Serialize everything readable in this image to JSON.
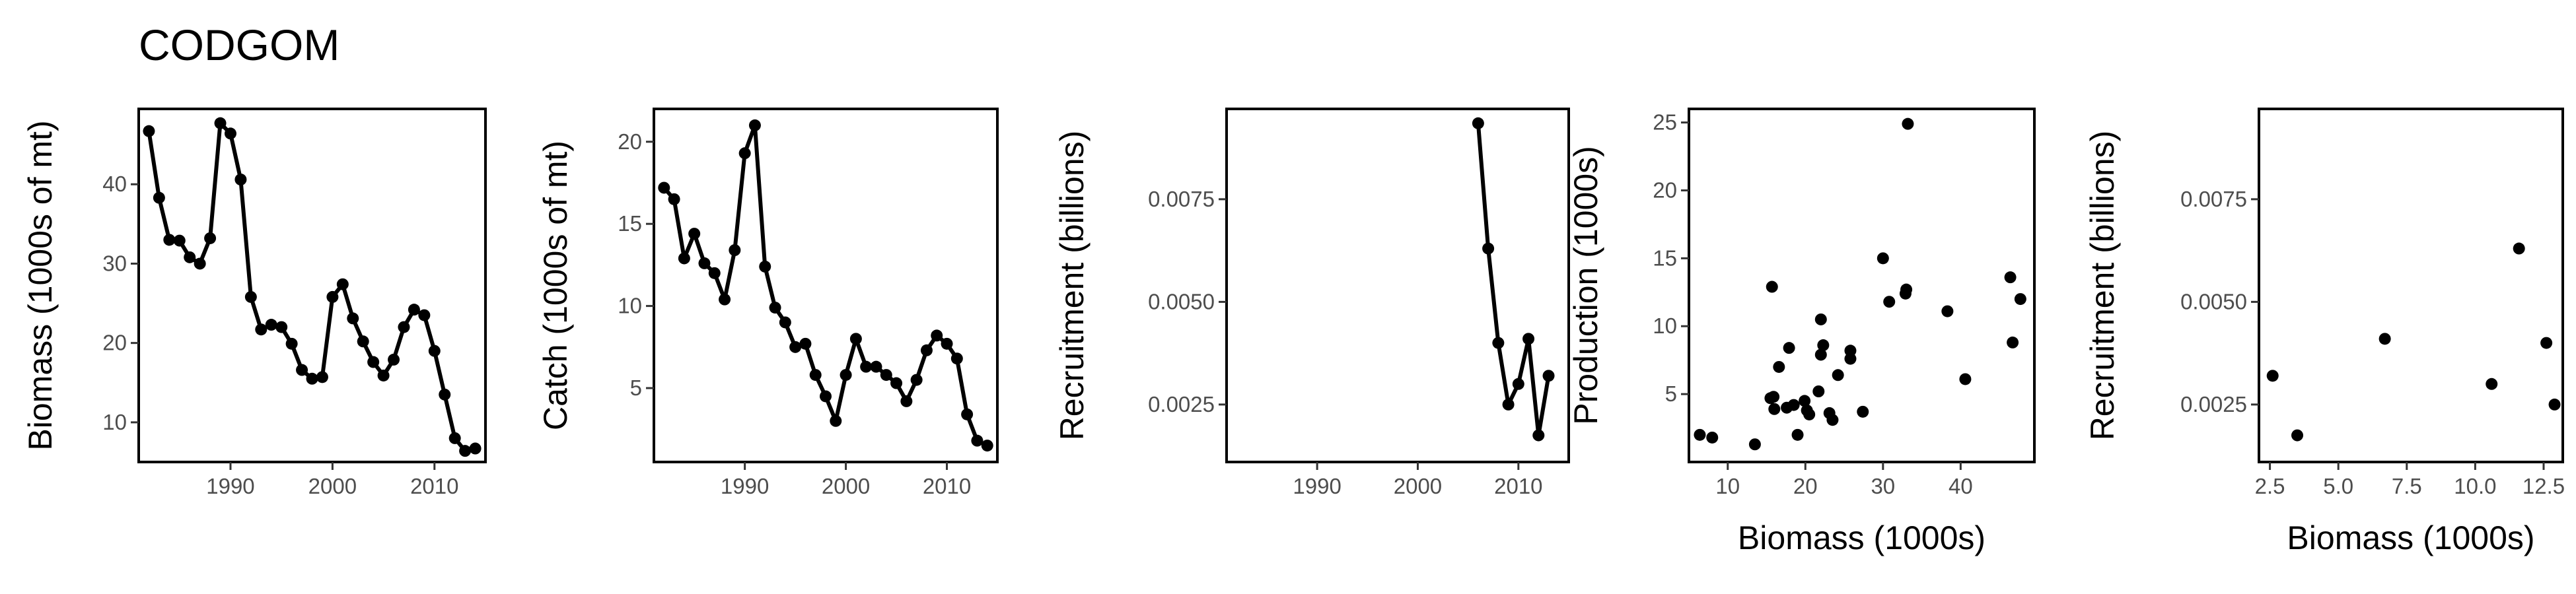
{
  "figure": {
    "title": "CODGOM"
  },
  "chart_data": [
    {
      "type": "line",
      "xlabel": "",
      "ylabel": "Biomass (1000s of mt)",
      "xlim": [
        1981,
        2015
      ],
      "ylim": [
        5,
        49.5
      ],
      "xticks": [
        1990,
        2000,
        2010
      ],
      "yticks": [
        10,
        20,
        30,
        40
      ],
      "x": [
        1982,
        1983,
        1984,
        1985,
        1986,
        1987,
        1988,
        1989,
        1990,
        1991,
        1992,
        1993,
        1994,
        1995,
        1996,
        1997,
        1998,
        1999,
        2000,
        2001,
        2002,
        2003,
        2004,
        2005,
        2006,
        2007,
        2008,
        2009,
        2010,
        2011,
        2012,
        2013,
        2014
      ],
      "y": [
        46.7,
        38.3,
        33.0,
        32.9,
        30.8,
        30.0,
        33.2,
        47.7,
        46.4,
        40.6,
        25.8,
        21.7,
        22.3,
        22.0,
        19.9,
        16.6,
        15.5,
        15.7,
        25.8,
        27.4,
        23.1,
        20.2,
        17.6,
        15.9,
        17.9,
        22.0,
        24.2,
        23.5,
        19.0,
        13.5,
        8.0,
        6.4,
        6.7
      ]
    },
    {
      "type": "line",
      "xlabel": "",
      "ylabel": "Catch (1000s of mt)",
      "xlim": [
        1981,
        2015
      ],
      "ylim": [
        0.5,
        22
      ],
      "xticks": [
        1990,
        2000,
        2010
      ],
      "yticks": [
        5,
        10,
        15,
        20
      ],
      "x": [
        1982,
        1983,
        1984,
        1985,
        1986,
        1987,
        1988,
        1989,
        1990,
        1991,
        1992,
        1993,
        1994,
        1995,
        1996,
        1997,
        1998,
        1999,
        2000,
        2001,
        2002,
        2003,
        2004,
        2005,
        2006,
        2007,
        2008,
        2009,
        2010,
        2011,
        2012,
        2013,
        2014
      ],
      "y": [
        17.2,
        16.5,
        12.9,
        14.4,
        12.6,
        12.0,
        10.4,
        13.4,
        19.3,
        21.0,
        12.4,
        9.9,
        9.0,
        7.5,
        7.7,
        5.8,
        4.5,
        3.0,
        5.8,
        8.0,
        6.3,
        6.3,
        5.8,
        5.3,
        4.2,
        5.5,
        7.3,
        8.2,
        7.7,
        6.8,
        3.4,
        1.8,
        1.5
      ]
    },
    {
      "type": "line",
      "xlabel": "",
      "ylabel": "Recruitment (billions)",
      "xlim": [
        1981,
        2015
      ],
      "ylim": [
        0.0011,
        0.0097
      ],
      "xticks": [
        1990,
        2000,
        2010
      ],
      "yticks": [
        0.0025,
        0.005,
        0.0075
      ],
      "ytick_labels": [
        "0.0025",
        "0.0050",
        "0.0075"
      ],
      "x": [
        2006,
        2007,
        2008,
        2009,
        2010,
        2011,
        2012,
        2013
      ],
      "y": [
        0.00935,
        0.0063,
        0.004,
        0.0025,
        0.003,
        0.0041,
        0.00175,
        0.0032
      ]
    },
    {
      "type": "scatter",
      "xlabel": "Biomass (1000s)",
      "ylabel": "Production (1000s)",
      "xlim": [
        5,
        49.5
      ],
      "ylim": [
        0,
        26
      ],
      "xticks": [
        10,
        20,
        30,
        40
      ],
      "yticks": [
        5,
        10,
        15,
        20,
        25
      ],
      "x": [
        6.4,
        8.0,
        13.5,
        15.5,
        15.7,
        16.6,
        15.9,
        17.6,
        17.9,
        19.0,
        19.9,
        20.2,
        22.0,
        21.7,
        22.0,
        22.3,
        23.1,
        23.5,
        24.2,
        25.8,
        25.8,
        27.4,
        30.0,
        30.8,
        32.9,
        33.0,
        33.2,
        38.3,
        40.6,
        46.4,
        46.7,
        47.7,
        16.0,
        18.5,
        20.5
      ],
      "y": [
        2.0,
        1.8,
        1.3,
        4.7,
        12.9,
        7.0,
        4.8,
        4.0,
        8.4,
        2.0,
        4.5,
        3.8,
        10.5,
        5.2,
        7.9,
        8.6,
        3.6,
        3.1,
        6.4,
        8.2,
        7.6,
        3.7,
        15.0,
        11.8,
        12.4,
        12.7,
        24.9,
        11.1,
        6.1,
        13.6,
        8.8,
        12.0,
        3.9,
        4.2,
        3.5
      ]
    },
    {
      "type": "scatter",
      "xlabel": "Biomass (1000s)",
      "ylabel": "Recruitment (billions)",
      "xlim": [
        2.1,
        13.2
      ],
      "ylim": [
        0.0011,
        0.0097
      ],
      "xticks": [
        2.5,
        5.0,
        7.5,
        10.0,
        12.5
      ],
      "xtick_labels": [
        "2.5",
        "5.0",
        "7.5",
        "10.0",
        "12.5"
      ],
      "yticks": [
        0.0025,
        0.005,
        0.0075
      ],
      "ytick_labels": [
        "0.0025",
        "0.0050",
        "0.0075"
      ],
      "x": [
        2.6,
        3.5,
        6.7,
        10.6,
        11.6,
        12.6,
        12.9
      ],
      "y": [
        0.0032,
        0.00175,
        0.0041,
        0.003,
        0.0063,
        0.004,
        0.0025
      ]
    }
  ]
}
